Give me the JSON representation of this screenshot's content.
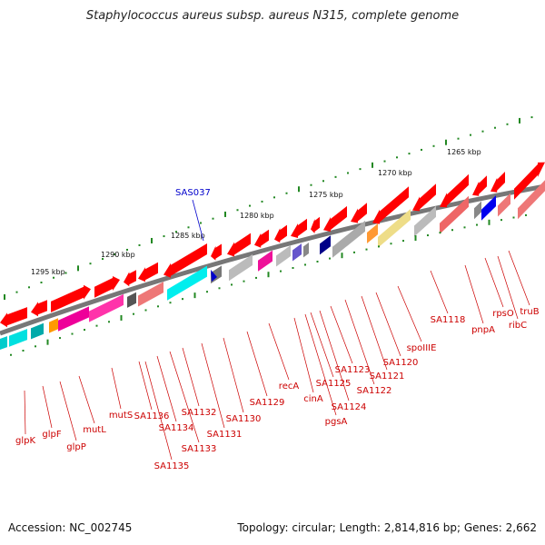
{
  "title": "Staphylococcus aureus subsp. aureus N315, complete genome",
  "footer": {
    "accession": "Accession: NC_002745",
    "summary": "Topology: circular; Length: 2,814,816 bp; Genes: 2,662"
  },
  "scale_labels": [
    "1265 kbp",
    "1270 kbp",
    "1275 kbp",
    "1280 kbp",
    "1285 kbp",
    "1290 kbp",
    "1295 kbp"
  ],
  "marker": {
    "label": "SAS037"
  },
  "gene_labels": [
    "glpK",
    "glpF",
    "glpP",
    "mutL",
    "mutS",
    "SA1136",
    "SA1135",
    "SA1134",
    "SA1133",
    "SA1132",
    "SA1131",
    "SA1130",
    "SA1129",
    "recA",
    "cinA",
    "pgsA",
    "SA1125",
    "SA1124",
    "SA1123",
    "SA1122",
    "SA1121",
    "SA1120",
    "spoIIIE",
    "SA1118",
    "pnpA",
    "rpsO",
    "ribC",
    "truB"
  ],
  "colors": {
    "gene_arrow": "#ff0000",
    "label": "#cc0000",
    "marker": "#0000cc",
    "backbone": "#777777",
    "ticks": "#228822"
  }
}
